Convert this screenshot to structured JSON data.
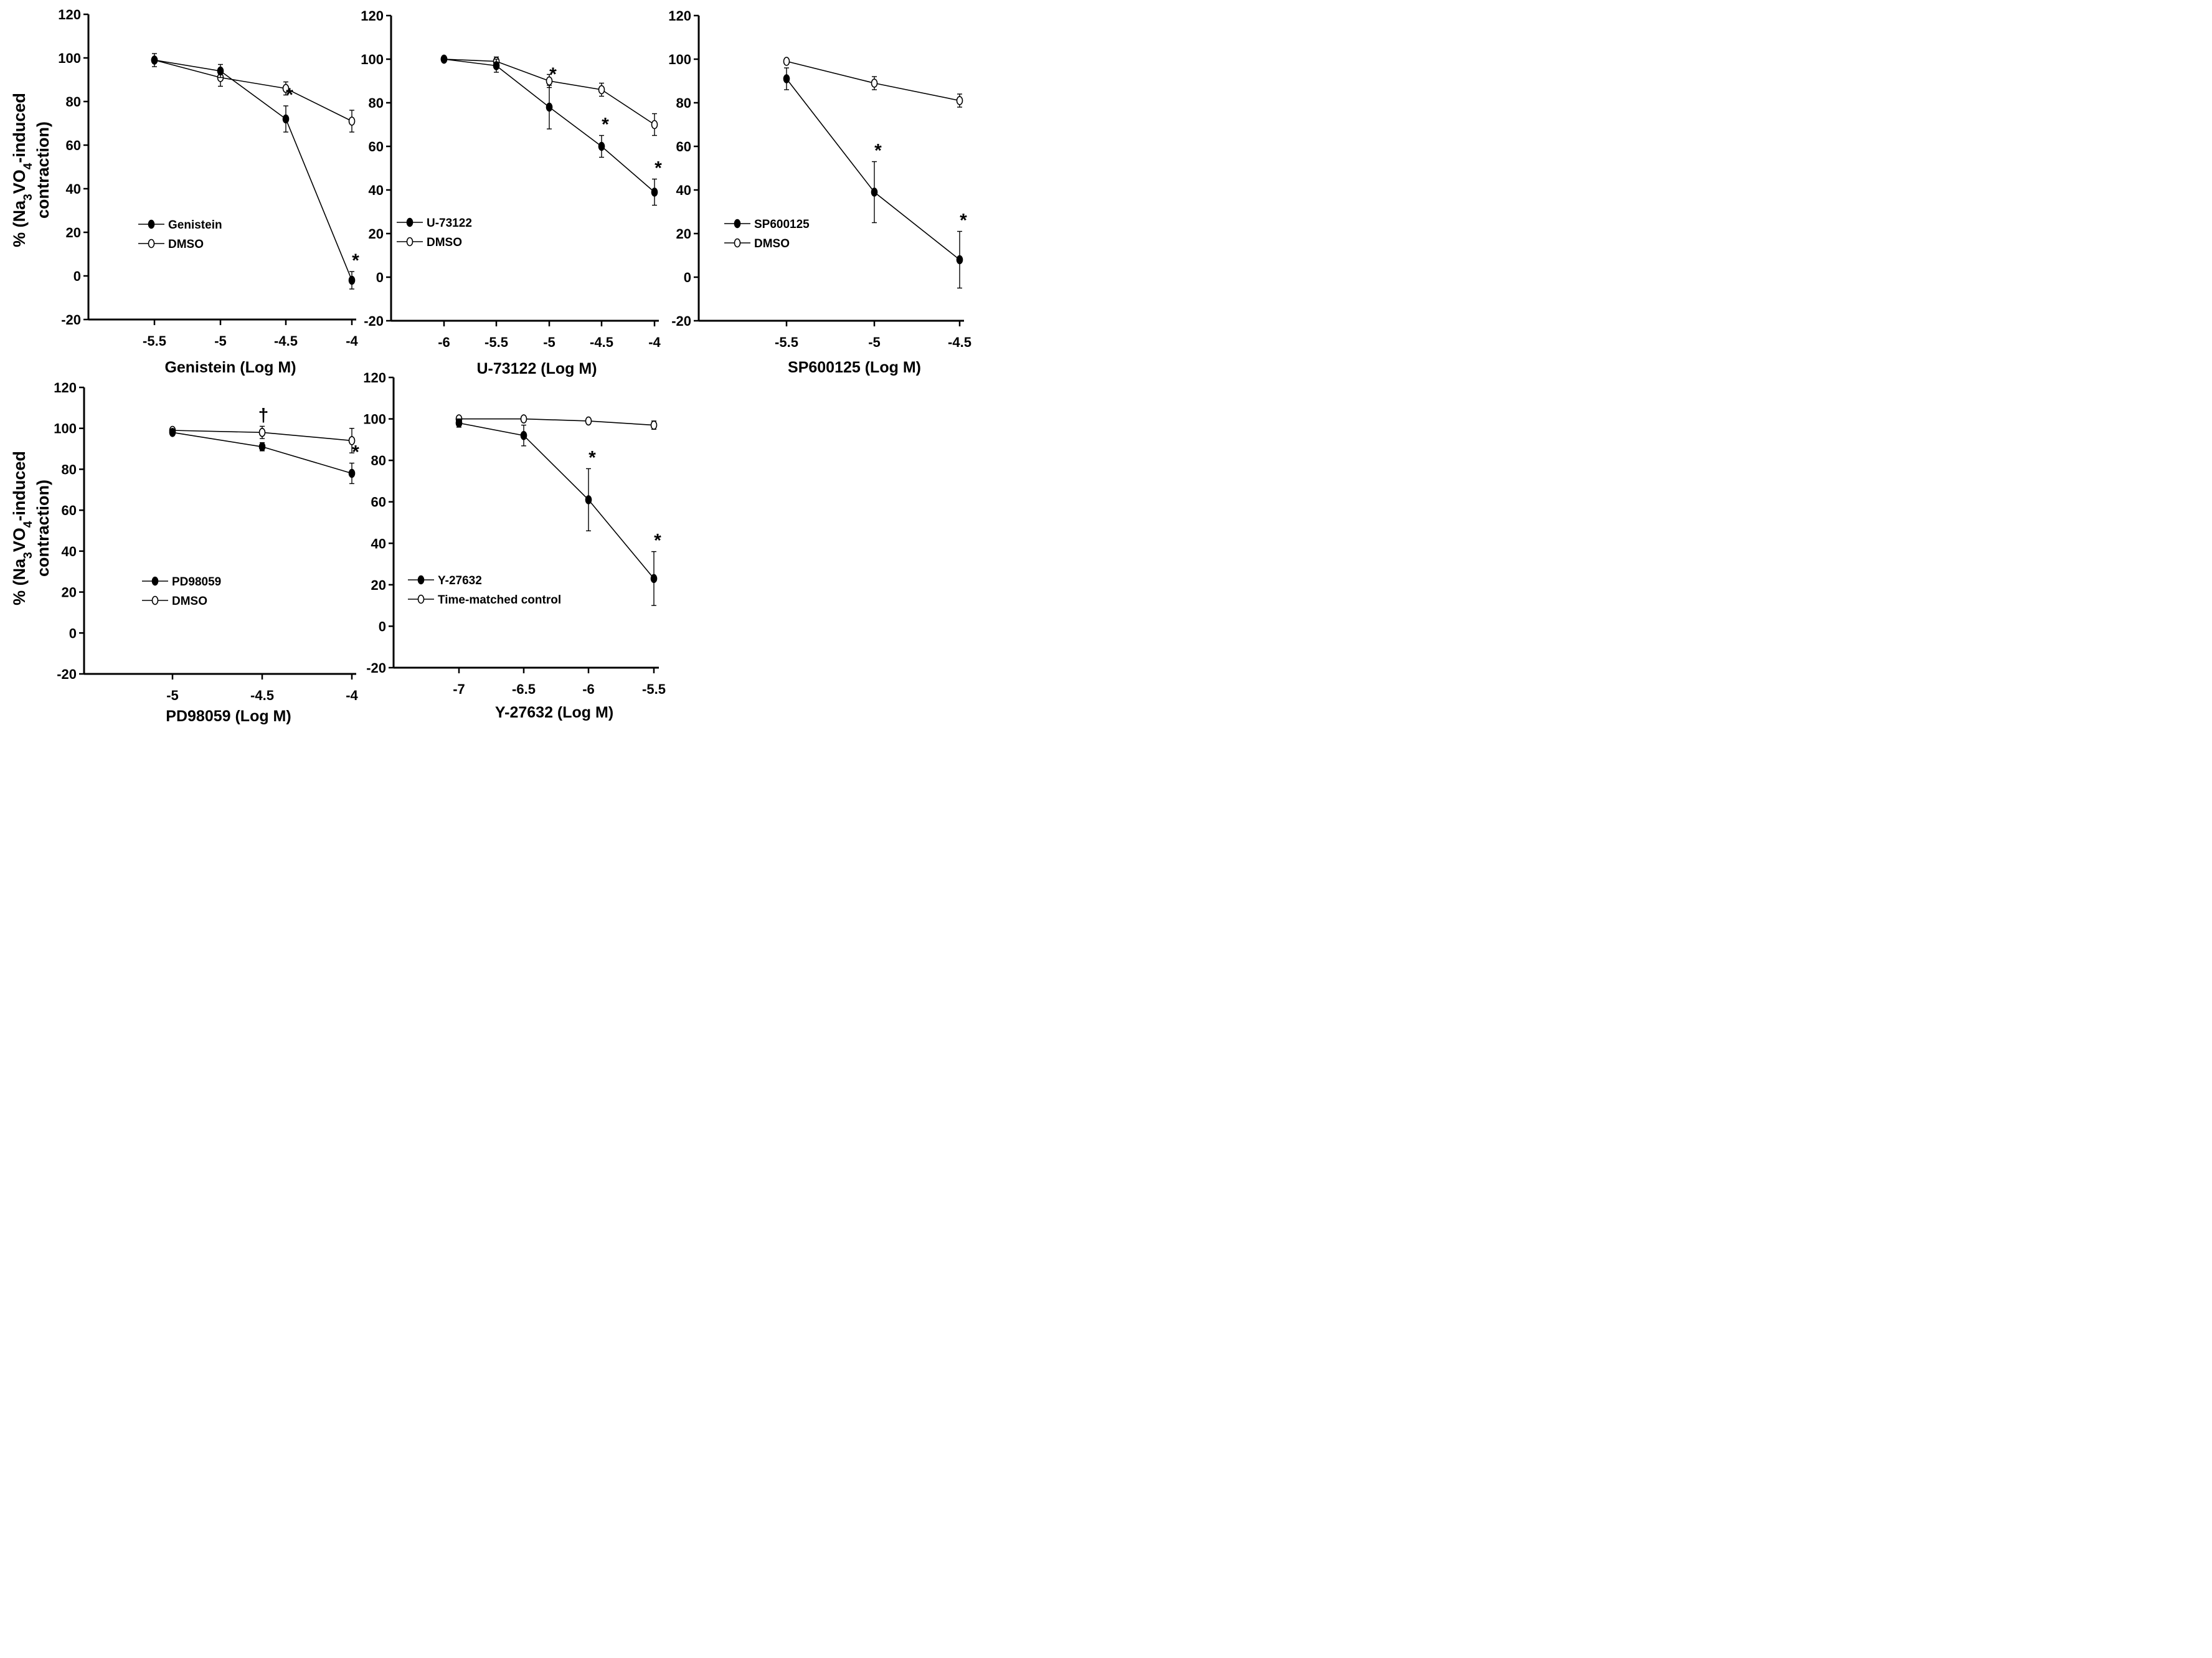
{
  "figure": {
    "ylabel_line1": "% (Na",
    "ylabel_sub3": "3",
    "ylabel_mid": "VO",
    "ylabel_sub4": "4",
    "ylabel_end": "-induced",
    "ylabel_line2": "contraction)"
  },
  "chart_data": [
    {
      "type": "line",
      "xlabel": "Genistein (Log M)",
      "ylim": [
        -20,
        120
      ],
      "yticks": [
        -20,
        0,
        20,
        40,
        60,
        80,
        100,
        120
      ],
      "x_tick_labels": [
        "-5.5",
        "-5",
        "-4.5",
        "-4"
      ],
      "legend_position": "center-left",
      "series": [
        {
          "name": "Genistein",
          "marker": "filled",
          "x": [
            "-5.5",
            "-5",
            "-4.5",
            "-4"
          ],
          "values": [
            99,
            94,
            72,
            -2
          ],
          "err": [
            0,
            3,
            6,
            4
          ],
          "sig": [
            "",
            "",
            "*",
            "*"
          ]
        },
        {
          "name": "DMSO",
          "marker": "open",
          "x": [
            "-5.5",
            "-5",
            "-4.5",
            "-4"
          ],
          "values": [
            99,
            91,
            86,
            71
          ],
          "err": [
            3,
            4,
            3,
            5
          ],
          "sig": [
            "",
            "",
            "",
            ""
          ]
        }
      ]
    },
    {
      "type": "line",
      "xlabel": "U-73122 (Log M)",
      "ylim": [
        -20,
        120
      ],
      "yticks": [
        -20,
        0,
        20,
        40,
        60,
        80,
        100,
        120
      ],
      "x_tick_labels": [
        "-6",
        "-5.5",
        "-5",
        "-4.5",
        "-4"
      ],
      "legend_position": "center-left",
      "series": [
        {
          "name": "U-73122",
          "marker": "filled",
          "x": [
            "-6",
            "-5.5",
            "-5",
            "-4.5",
            "-4"
          ],
          "values": [
            100,
            97,
            78,
            60,
            39
          ],
          "err": [
            0,
            3,
            10,
            5,
            6
          ],
          "sig": [
            "",
            "",
            "*",
            "*",
            "*"
          ]
        },
        {
          "name": "DMSO",
          "marker": "open",
          "x": [
            "-6",
            "-5.5",
            "-5",
            "-4.5",
            "-4"
          ],
          "values": [
            100,
            99,
            90,
            86,
            70
          ],
          "err": [
            0,
            2,
            3,
            3,
            5
          ],
          "sig": [
            "",
            "",
            "",
            "",
            ""
          ]
        }
      ]
    },
    {
      "type": "line",
      "xlabel": "SP600125 (Log M)",
      "ylim": [
        -20,
        120
      ],
      "yticks": [
        -20,
        0,
        20,
        40,
        60,
        80,
        100,
        120
      ],
      "x_tick_labels": [
        "-5.5",
        "-5",
        "-4.5"
      ],
      "legend_position": "center-left",
      "series": [
        {
          "name": "SP600125",
          "marker": "filled",
          "x": [
            "-5.5",
            "-5",
            "-4.5"
          ],
          "values": [
            91,
            39,
            8
          ],
          "err": [
            5,
            14,
            13
          ],
          "sig": [
            "",
            "*",
            "*"
          ]
        },
        {
          "name": "DMSO",
          "marker": "open",
          "x": [
            "-5.5",
            "-5",
            "-4.5"
          ],
          "values": [
            99,
            89,
            81
          ],
          "err": [
            0,
            3,
            3
          ],
          "sig": [
            "",
            "",
            ""
          ]
        }
      ]
    },
    {
      "type": "line",
      "xlabel": "PD98059 (Log M)",
      "ylim": [
        -20,
        120
      ],
      "yticks": [
        -20,
        0,
        20,
        40,
        60,
        80,
        100,
        120
      ],
      "x_tick_labels": [
        "-5",
        "-4.5",
        "-4"
      ],
      "legend_position": "bottom-left",
      "series": [
        {
          "name": "PD98059",
          "marker": "filled",
          "x": [
            "-5",
            "-4.5",
            "-4"
          ],
          "values": [
            98,
            91,
            78
          ],
          "err": [
            0,
            2,
            5
          ],
          "sig": [
            "",
            "",
            "*"
          ]
        },
        {
          "name": "DMSO",
          "marker": "open",
          "x": [
            "-5",
            "-4.5",
            "-4"
          ],
          "values": [
            99,
            98,
            94
          ],
          "err": [
            0,
            3,
            6
          ],
          "sig": [
            "",
            "†",
            ""
          ]
        }
      ]
    },
    {
      "type": "line",
      "xlabel": "Y-27632 (Log M)",
      "ylim": [
        -20,
        120
      ],
      "yticks": [
        -20,
        0,
        20,
        40,
        60,
        80,
        100,
        120
      ],
      "x_tick_labels": [
        "-7",
        "-6.5",
        "-6",
        "-5.5"
      ],
      "legend_position": "bottom-left",
      "series": [
        {
          "name": "Y-27632",
          "marker": "filled",
          "x": [
            "-7",
            "-6.5",
            "-6",
            "-5.5"
          ],
          "values": [
            98,
            92,
            61,
            23
          ],
          "err": [
            2,
            5,
            15,
            13
          ],
          "sig": [
            "",
            "",
            "*",
            "*"
          ]
        },
        {
          "name": "Time-matched control",
          "marker": "open",
          "x": [
            "-7",
            "-6.5",
            "-6",
            "-5.5"
          ],
          "values": [
            100,
            100,
            99,
            97
          ],
          "err": [
            0,
            0,
            1,
            2
          ],
          "sig": [
            "",
            "",
            "",
            ""
          ]
        }
      ]
    }
  ]
}
